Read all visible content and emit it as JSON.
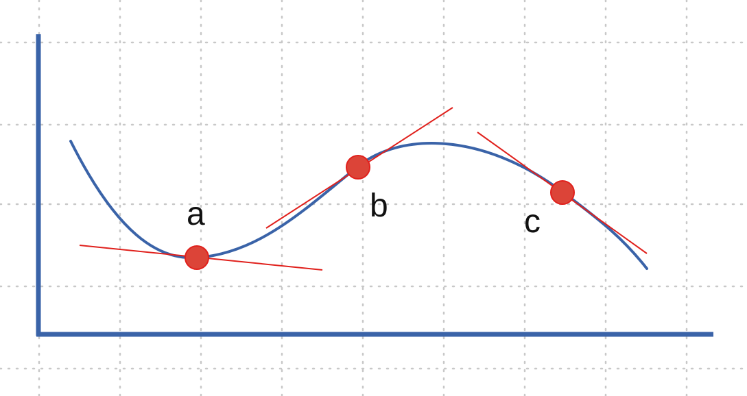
{
  "colors": {
    "axis": "#3a63a8",
    "curve": "#3a63a8",
    "tangent": "#e0201c",
    "point": "#dc4438",
    "grid": "#c8c8c8"
  },
  "points": [
    {
      "id": "a",
      "label": "a"
    },
    {
      "id": "b",
      "label": "b"
    },
    {
      "id": "c",
      "label": "c"
    }
  ]
}
